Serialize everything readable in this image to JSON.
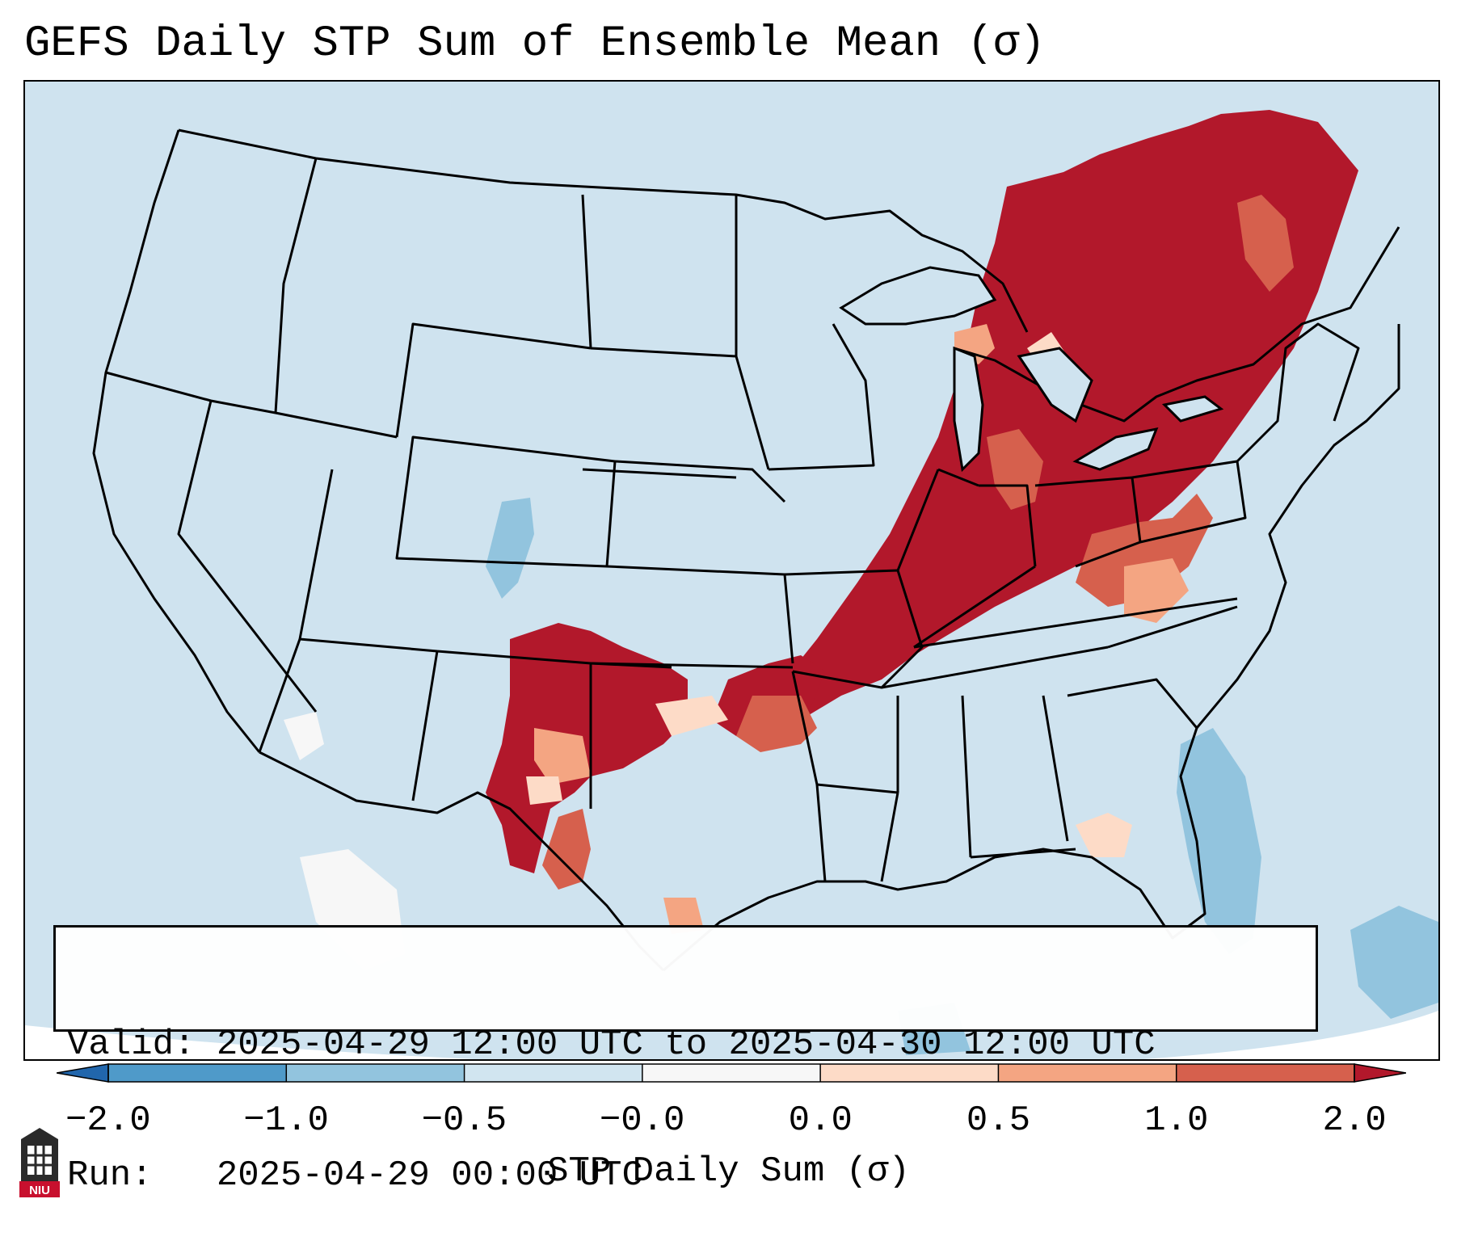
{
  "title": "GEFS Daily STP Sum of Ensemble Mean (σ)",
  "info": {
    "valid_label": "Valid:",
    "valid_value": "2025-04-29 12:00 UTC to 2025-04-30 12:00 UTC",
    "run_label": "Run:  ",
    "run_value": "2025-04-29 00:00 UTC"
  },
  "colorbar": {
    "label": "STP Daily Sum (σ)",
    "ticks": [
      "−2.0",
      "−1.0",
      "−0.5",
      "−0.0",
      "0.0",
      "0.5",
      "1.0",
      "2.0"
    ],
    "colors": [
      "#2f78b7",
      "#4f9ac9",
      "#92c4de",
      "#d1e5f0",
      "#f7f7f7",
      "#fddbc7",
      "#f4a582",
      "#d6604d",
      "#b2182b"
    ],
    "under_color": "#2166ac",
    "over_color": "#b2182b"
  },
  "map": {
    "background_color": "#cfe3ef",
    "border_color": "#000000"
  },
  "logo": {
    "text": "NIU",
    "color": "#c8102e"
  }
}
